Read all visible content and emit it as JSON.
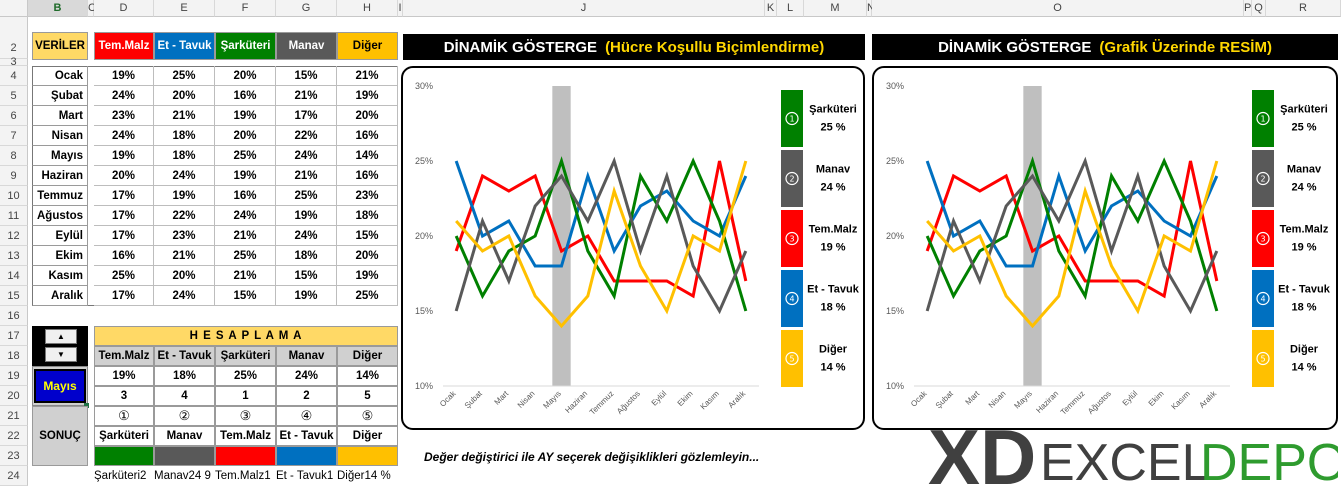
{
  "columns": [
    "B",
    "C",
    "D",
    "E",
    "F",
    "G",
    "H",
    "I",
    "J",
    "K",
    "L",
    "M",
    "N",
    "O",
    "P",
    "Q",
    "R"
  ],
  "rows": [
    "2",
    "3",
    "4",
    "5",
    "6",
    "7",
    "8",
    "9",
    "10",
    "11",
    "12",
    "13",
    "14",
    "15",
    "16",
    "17",
    "18",
    "19",
    "20",
    "21",
    "22",
    "23",
    "24"
  ],
  "headers": {
    "veriler": "VERİLER",
    "cats": [
      "Tem.Malz",
      "Et - Tavuk",
      "Şarküteri",
      "Manav",
      "Diğer"
    ]
  },
  "colors": {
    "tem": "#ff0000",
    "et": "#0070c0",
    "sar": "#008000",
    "manav": "#595959",
    "diger": "#ffc000",
    "header_yellow": "#ffd966",
    "highlight": "#bfbfbf",
    "selected_month_bg": "#0000cc",
    "selected_month_fg": "#ffff00"
  },
  "months": [
    {
      "name": "Ocak",
      "vals": [
        "19%",
        "25%",
        "20%",
        "15%",
        "21%"
      ]
    },
    {
      "name": "Şubat",
      "vals": [
        "24%",
        "20%",
        "16%",
        "21%",
        "19%"
      ]
    },
    {
      "name": "Mart",
      "vals": [
        "23%",
        "21%",
        "19%",
        "17%",
        "20%"
      ]
    },
    {
      "name": "Nisan",
      "vals": [
        "24%",
        "18%",
        "20%",
        "22%",
        "16%"
      ]
    },
    {
      "name": "Mayıs",
      "vals": [
        "19%",
        "18%",
        "25%",
        "24%",
        "14%"
      ]
    },
    {
      "name": "Haziran",
      "vals": [
        "20%",
        "24%",
        "19%",
        "21%",
        "16%"
      ]
    },
    {
      "name": "Temmuz",
      "vals": [
        "17%",
        "19%",
        "16%",
        "25%",
        "23%"
      ]
    },
    {
      "name": "Ağustos",
      "vals": [
        "17%",
        "22%",
        "24%",
        "19%",
        "18%"
      ]
    },
    {
      "name": "Eylül",
      "vals": [
        "17%",
        "23%",
        "21%",
        "24%",
        "15%"
      ]
    },
    {
      "name": "Ekim",
      "vals": [
        "16%",
        "21%",
        "25%",
        "18%",
        "20%"
      ]
    },
    {
      "name": "Kasım",
      "vals": [
        "25%",
        "20%",
        "21%",
        "15%",
        "19%"
      ]
    },
    {
      "name": "Aralık",
      "vals": [
        "17%",
        "24%",
        "15%",
        "19%",
        "25%"
      ]
    }
  ],
  "hesaplama": {
    "title": "H E S A P L A M A",
    "headers": [
      "Tem.Malz",
      "Et - Tavuk",
      "Şarküteri",
      "Manav",
      "Diğer"
    ],
    "values": [
      "19%",
      "18%",
      "25%",
      "24%",
      "14%"
    ],
    "ranks": [
      "3",
      "4",
      "1",
      "2",
      "5"
    ],
    "circles": [
      "①",
      "②",
      "③",
      "④",
      "⑤"
    ],
    "selected_month": "Mayıs",
    "spinner_up": "▲",
    "spinner_down": "▼",
    "sonuc_label": "SONUÇ",
    "sorted": [
      "Şarküteri",
      "Manav",
      "Tem.Malz",
      "Et - Tavuk",
      "Diğer"
    ],
    "sorted_colors": [
      "#008000",
      "#595959",
      "#ff0000",
      "#0070c0",
      "#ffc000"
    ],
    "row24": [
      "Şarküteri2",
      "Manav24 9",
      "Tem.Malz1",
      "Et - Tavuk1",
      "Diğer14 %"
    ]
  },
  "chart1_title": {
    "white": "DİNAMİK GÖSTERGE",
    "yellow": "(Hücre Koşullu Biçimlendirme)"
  },
  "chart2_title": {
    "white": "DİNAMİK GÖSTERGE",
    "yellow": "(Grafik Üzerinde RESİM)"
  },
  "legend": [
    {
      "circle": "①",
      "name": "Şarküteri",
      "value": "25 %",
      "color": "#008000"
    },
    {
      "circle": "②",
      "name": "Manav",
      "value": "24 %",
      "color": "#595959"
    },
    {
      "circle": "③",
      "name": "Tem.Malz",
      "value": "19 %",
      "color": "#ff0000"
    },
    {
      "circle": "④",
      "name": "Et - Tavuk",
      "value": "18 %",
      "color": "#0070c0"
    },
    {
      "circle": "⑤",
      "name": "Diğer",
      "value": "14 %",
      "color": "#ffc000"
    }
  ],
  "note": "Değer değiştirici ile  AY  seçerek  değişiklikleri gözlemleyin...",
  "logo": {
    "x": "X",
    "d": "D",
    "excel": "EXCEL",
    "depo": "DEPO"
  },
  "chart_data": [
    {
      "type": "line",
      "title": "",
      "categories": [
        "Ocak",
        "Şubat",
        "Mart",
        "Nisan",
        "Mayıs",
        "Haziran",
        "Temmuz",
        "Ağustos",
        "Eylül",
        "Ekim",
        "Kasım",
        "Aralık"
      ],
      "ylim": [
        0.1,
        0.3
      ],
      "yticks": [
        "10%",
        "15%",
        "20%",
        "25%",
        "30%"
      ],
      "highlight_category": "Mayıs",
      "series": [
        {
          "name": "Tem.Malz",
          "color": "#ff0000",
          "values": [
            0.19,
            0.24,
            0.23,
            0.24,
            0.19,
            0.2,
            0.17,
            0.17,
            0.17,
            0.16,
            0.25,
            0.17
          ]
        },
        {
          "name": "Et - Tavuk",
          "color": "#0070c0",
          "values": [
            0.25,
            0.2,
            0.21,
            0.18,
            0.18,
            0.24,
            0.19,
            0.22,
            0.23,
            0.21,
            0.2,
            0.24
          ]
        },
        {
          "name": "Şarküteri",
          "color": "#008000",
          "values": [
            0.2,
            0.16,
            0.19,
            0.2,
            0.25,
            0.19,
            0.16,
            0.24,
            0.21,
            0.25,
            0.21,
            0.15
          ]
        },
        {
          "name": "Manav",
          "color": "#595959",
          "values": [
            0.15,
            0.21,
            0.17,
            0.22,
            0.24,
            0.21,
            0.25,
            0.19,
            0.24,
            0.18,
            0.15,
            0.19
          ]
        },
        {
          "name": "Diğer",
          "color": "#ffc000",
          "values": [
            0.21,
            0.19,
            0.2,
            0.16,
            0.14,
            0.16,
            0.23,
            0.18,
            0.15,
            0.2,
            0.19,
            0.25
          ]
        }
      ]
    },
    {
      "type": "line",
      "title": "",
      "categories": [
        "Ocak",
        "Şubat",
        "Mart",
        "Nisan",
        "Mayıs",
        "Haziran",
        "Temmuz",
        "Ağustos",
        "Eylül",
        "Ekim",
        "Kasım",
        "Aralık"
      ],
      "ylim": [
        0.1,
        0.3
      ],
      "yticks": [
        "10%",
        "15%",
        "20%",
        "25%",
        "30%"
      ],
      "highlight_category": "Mayıs",
      "series": [
        {
          "name": "Tem.Malz",
          "color": "#ff0000",
          "values": [
            0.19,
            0.24,
            0.23,
            0.24,
            0.19,
            0.2,
            0.17,
            0.17,
            0.17,
            0.16,
            0.25,
            0.17
          ]
        },
        {
          "name": "Et - Tavuk",
          "color": "#0070c0",
          "values": [
            0.25,
            0.2,
            0.21,
            0.18,
            0.18,
            0.24,
            0.19,
            0.22,
            0.23,
            0.21,
            0.2,
            0.24
          ]
        },
        {
          "name": "Şarküteri",
          "color": "#008000",
          "values": [
            0.2,
            0.16,
            0.19,
            0.2,
            0.25,
            0.19,
            0.16,
            0.24,
            0.21,
            0.25,
            0.21,
            0.15
          ]
        },
        {
          "name": "Manav",
          "color": "#595959",
          "values": [
            0.15,
            0.21,
            0.17,
            0.22,
            0.24,
            0.21,
            0.25,
            0.19,
            0.24,
            0.18,
            0.15,
            0.19
          ]
        },
        {
          "name": "Diğer",
          "color": "#ffc000",
          "values": [
            0.21,
            0.19,
            0.2,
            0.16,
            0.14,
            0.16,
            0.23,
            0.18,
            0.15,
            0.2,
            0.19,
            0.25
          ]
        }
      ]
    }
  ]
}
